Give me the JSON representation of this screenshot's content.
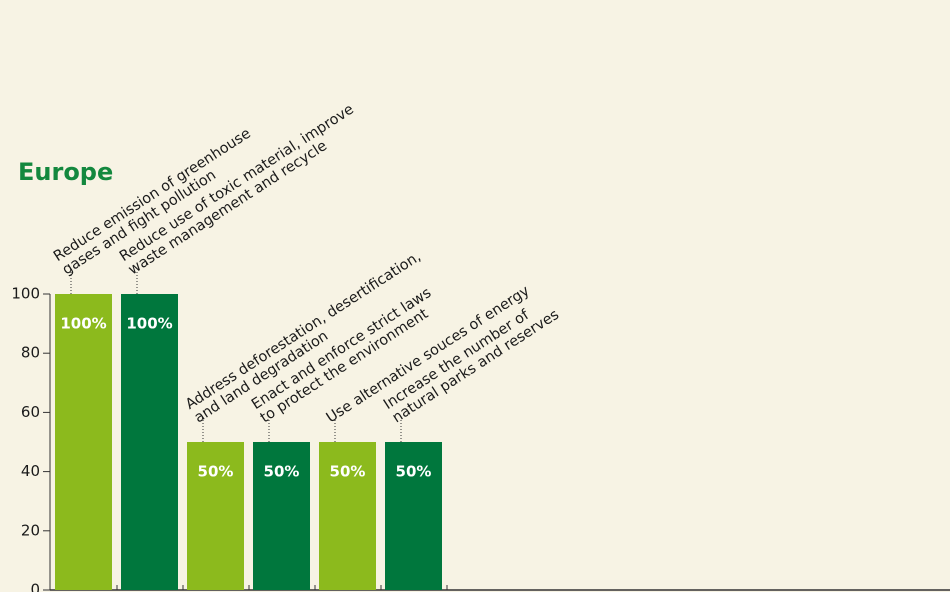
{
  "chart_data": {
    "type": "bar",
    "title": "Europe",
    "categories": [
      [
        "Reduce emission of greenhouse",
        "gases and fight pollution"
      ],
      [
        "Reduce use of toxic material, improve",
        "waste management and recycle"
      ],
      [
        "Address deforestation, desertification,",
        "and land degradation"
      ],
      [
        "Enact and enforce strict laws",
        "to protect the environment"
      ],
      [
        "Use alternative souces of energy"
      ],
      [
        "Increase the number of",
        "natural parks and reserves"
      ]
    ],
    "values": [
      100,
      100,
      50,
      50,
      50,
      50
    ],
    "value_labels": [
      "100%",
      "100%",
      "50%",
      "50%",
      "50%",
      "50%"
    ],
    "colors": [
      "#8cba1d",
      "#00773d",
      "#8cba1d",
      "#00773d",
      "#8cba1d",
      "#00773d"
    ],
    "ylim": [
      0,
      100
    ],
    "yticks": [
      0,
      20,
      40,
      60,
      80,
      100
    ]
  }
}
